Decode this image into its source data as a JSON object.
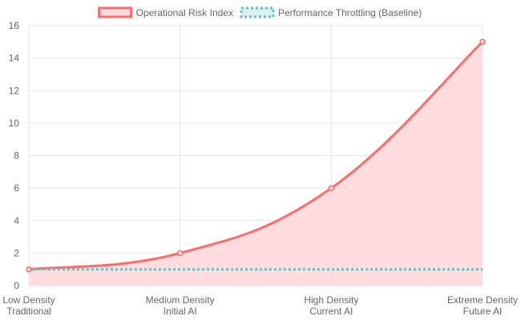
{
  "chart_data": {
    "type": "line",
    "categories": [
      [
        "Low Density",
        "Traditional"
      ],
      [
        "Medium Density",
        "Initial AI"
      ],
      [
        "High Density",
        "Current AI"
      ],
      [
        "Extreme Density",
        "Future AI"
      ]
    ],
    "series": [
      {
        "name": "Operational Risk Index",
        "values": [
          1,
          2,
          6,
          15
        ],
        "style": "solid-filled",
        "line_color": "#ff6b6b",
        "fill_color": "#ffdddf",
        "show_points": true
      },
      {
        "name": "Performance Throttling (Baseline)",
        "values": [
          1,
          1,
          1,
          1
        ],
        "style": "dotted",
        "line_color": "#4ecdc4",
        "fill_color": "#d9f0ee",
        "show_points": false
      }
    ],
    "ylim": [
      0,
      16
    ],
    "yticks": [
      0,
      2,
      4,
      6,
      8,
      10,
      12,
      14,
      16
    ],
    "grid": true,
    "legend_position": "top-center",
    "title": "",
    "xlabel": "",
    "ylabel": ""
  }
}
